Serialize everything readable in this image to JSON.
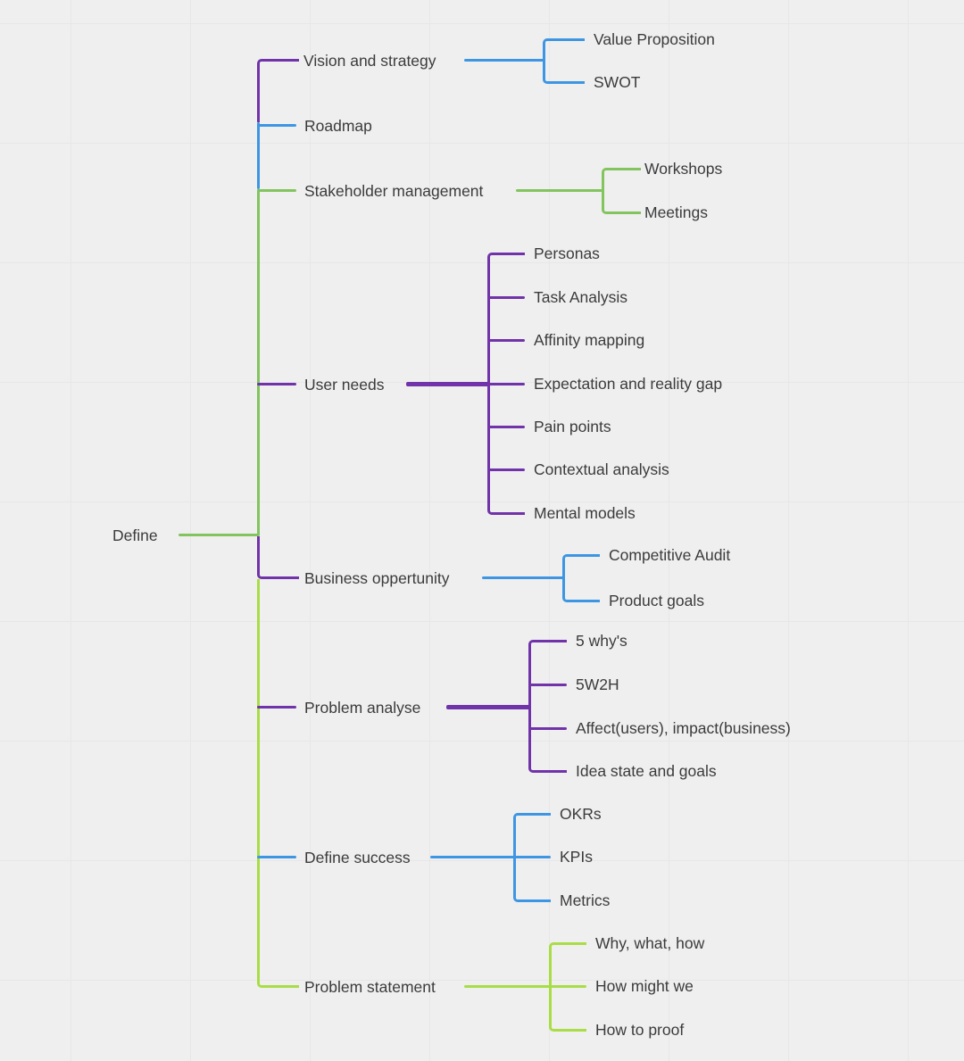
{
  "colors": {
    "background": "#F0EFEF",
    "grid": "#E7E7E7",
    "text": "#3B3B3B",
    "purple": "#7133A9",
    "blue": "#3D96E3",
    "green": "#82C45E",
    "lime": "#A9DD46"
  },
  "mindmap": {
    "root": {
      "label": "Define"
    },
    "branches": [
      {
        "label": "Vision and strategy",
        "branch_color": "purple",
        "children_color": "blue",
        "children": [
          {
            "label": "Value Proposition"
          },
          {
            "label": "SWOT"
          }
        ]
      },
      {
        "label": "Roadmap",
        "branch_color": "blue",
        "children_color": "blue",
        "children": []
      },
      {
        "label": "Stakeholder management",
        "branch_color": "green",
        "children_color": "green",
        "children": [
          {
            "label": "Workshops"
          },
          {
            "label": "Meetings"
          }
        ]
      },
      {
        "label": "User needs",
        "branch_color": "purple",
        "children_color": "purple",
        "children": [
          {
            "label": "Personas"
          },
          {
            "label": "Task Analysis"
          },
          {
            "label": "Affinity mapping"
          },
          {
            "label": "Expectation and reality gap"
          },
          {
            "label": "Pain points"
          },
          {
            "label": "Contextual analysis"
          },
          {
            "label": "Mental models"
          }
        ]
      },
      {
        "label": "Business oppertunity",
        "branch_color": "purple",
        "children_color": "blue",
        "children": [
          {
            "label": "Competitive Audit"
          },
          {
            "label": "Product goals"
          }
        ]
      },
      {
        "label": "Problem analyse",
        "branch_color": "purple",
        "children_color": "purple",
        "children": [
          {
            "label": "5 why's"
          },
          {
            "label": "5W2H"
          },
          {
            "label": "Affect(users), impact(business)"
          },
          {
            "label": "Idea state and goals"
          }
        ]
      },
      {
        "label": "Define success",
        "branch_color": "blue",
        "children_color": "blue",
        "children": [
          {
            "label": "OKRs"
          },
          {
            "label": "KPIs"
          },
          {
            "label": "Metrics"
          }
        ]
      },
      {
        "label": "Problem statement",
        "branch_color": "lime",
        "children_color": "lime",
        "children": [
          {
            "label": "Why, what, how"
          },
          {
            "label": "How might we"
          },
          {
            "label": "How to proof"
          }
        ]
      }
    ]
  }
}
